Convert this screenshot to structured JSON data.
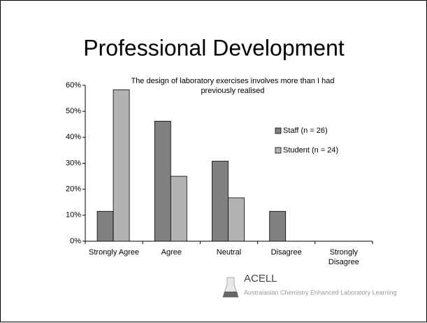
{
  "slide_title": "Professional Development",
  "footer": {
    "name": "ACELL",
    "tagline": "Australasian Chemistry Enhanced Laboratory Learning"
  },
  "chart_data": {
    "type": "bar",
    "title": [
      "The design of laboratory exercises involves more than I had",
      "previously realised"
    ],
    "categories": [
      "Strongly Agree",
      "Agree",
      "Neutral",
      "Disagree",
      "Strongly Disagree"
    ],
    "series": [
      {
        "name": "Staff (n = 26)",
        "color": "#808080",
        "values": [
          11.5,
          46.2,
          30.8,
          11.5,
          0
        ]
      },
      {
        "name": "Student (n = 24)",
        "color": "#b3b3b3",
        "values": [
          58.3,
          25,
          16.7,
          0,
          0
        ]
      }
    ],
    "ylim": [
      0,
      60
    ],
    "yticks": [
      {
        "value": 0,
        "label": "0%"
      },
      {
        "value": 10,
        "label": "10%"
      },
      {
        "value": 20,
        "label": "20%"
      },
      {
        "value": 30,
        "label": "30%"
      },
      {
        "value": 40,
        "label": "40%"
      },
      {
        "value": 50,
        "label": "50%"
      },
      {
        "value": 60,
        "label": "60%"
      }
    ],
    "legend": "right"
  }
}
